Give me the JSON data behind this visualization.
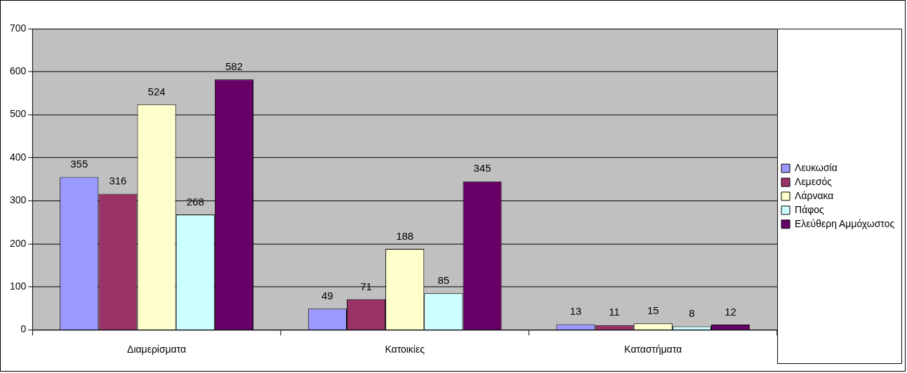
{
  "chart_data": {
    "type": "bar",
    "categories": [
      "Διαμερίσματα",
      "Κατοικίες",
      "Καταστήματα"
    ],
    "series": [
      {
        "name": "Λευκωσία",
        "color": "#9999ff",
        "values": [
          355,
          49,
          13
        ]
      },
      {
        "name": "Λεμεσός",
        "color": "#993366",
        "values": [
          316,
          71,
          11
        ]
      },
      {
        "name": "Λάρνακα",
        "color": "#ffffcc",
        "values": [
          524,
          188,
          15
        ]
      },
      {
        "name": "Πάφος",
        "color": "#ccffff",
        "values": [
          268,
          85,
          8
        ]
      },
      {
        "name": "Ελεύθερη Αμμόχωστος",
        "color": "#660066",
        "values": [
          582,
          345,
          12
        ]
      }
    ],
    "ylim": [
      0,
      700
    ],
    "yticks": [
      0,
      100,
      200,
      300,
      400,
      500,
      600,
      700
    ],
    "grid": "y",
    "legend": "right",
    "data_labels": true
  }
}
